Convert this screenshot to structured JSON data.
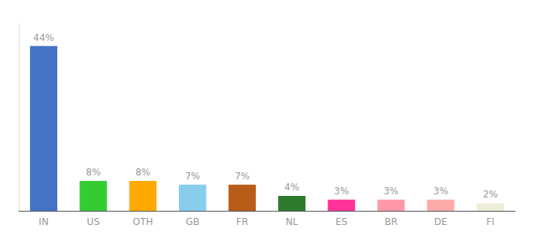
{
  "chart_data": {
    "type": "bar",
    "categories": [
      "IN",
      "US",
      "OTH",
      "GB",
      "FR",
      "NL",
      "ES",
      "BR",
      "DE",
      "FI"
    ],
    "values": [
      44,
      8,
      8,
      7,
      7,
      4,
      3,
      3,
      3,
      2
    ],
    "value_labels": [
      "44%",
      "8%",
      "8%",
      "7%",
      "7%",
      "4%",
      "3%",
      "3%",
      "3%",
      "2%"
    ],
    "colors": [
      "#4472c4",
      "#33cc33",
      "#ffaa00",
      "#88ccee",
      "#b85c1a",
      "#2d7a2d",
      "#ff3399",
      "#ff99aa",
      "#ffaaaa",
      "#eeeed8"
    ],
    "ylim": [
      0,
      50
    ],
    "grid": false,
    "data_labels": true,
    "tick_labels": "x"
  }
}
